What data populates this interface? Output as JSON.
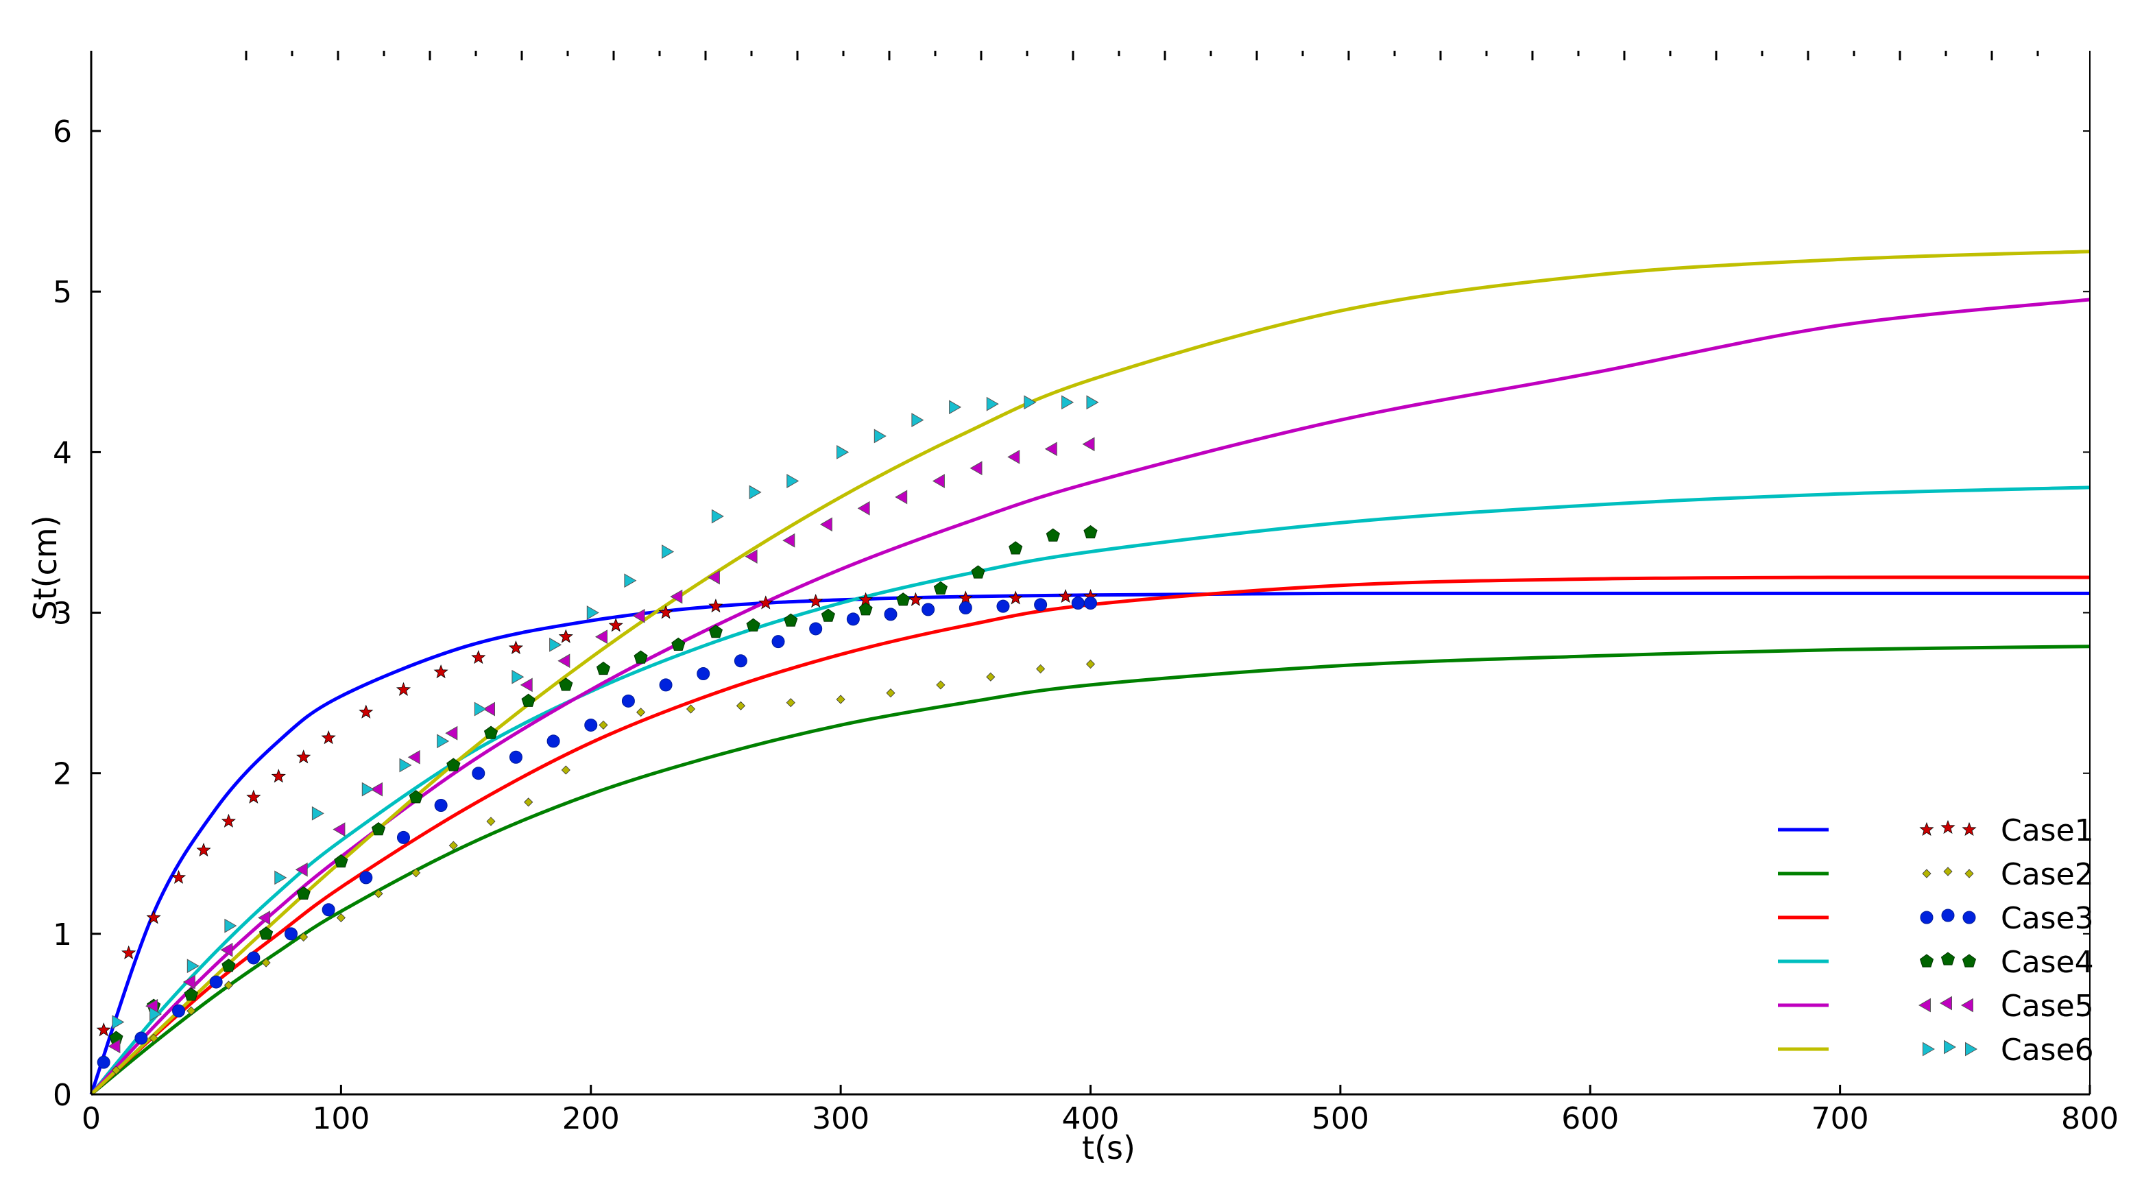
{
  "chart_data": {
    "type": "line",
    "xlabel": "t(s)",
    "ylabel": "St(cm)",
    "xlim": [
      0,
      800
    ],
    "ylim": [
      0,
      6.5
    ],
    "x_ticks": [
      0,
      100,
      200,
      300,
      400,
      500,
      600,
      700,
      800
    ],
    "y_ticks": [
      0,
      1,
      2,
      3,
      4,
      5,
      6
    ],
    "grid": false,
    "legend_position": "bottom-right",
    "model_curve_x": [
      0,
      25,
      50,
      75,
      100,
      150,
      200,
      250,
      300,
      350,
      400,
      500,
      600,
      700,
      800
    ],
    "series": [
      {
        "name": "Case1",
        "color": "#0000ff",
        "marker": "star",
        "marker_color": "#cc0000",
        "model": [
          0,
          1.13,
          1.78,
          2.2,
          2.48,
          2.79,
          2.95,
          3.04,
          3.08,
          3.1,
          3.11,
          3.12,
          3.12,
          3.12,
          3.12
        ],
        "measured": {
          "x": [
            5,
            15,
            25,
            35,
            45,
            55,
            65,
            75,
            85,
            95,
            110,
            125,
            140,
            155,
            170,
            190,
            210,
            230,
            250,
            270,
            290,
            310,
            330,
            350,
            370,
            390,
            400
          ],
          "y": [
            0.4,
            0.88,
            1.1,
            1.35,
            1.52,
            1.7,
            1.85,
            1.98,
            2.1,
            2.22,
            2.38,
            2.52,
            2.63,
            2.72,
            2.78,
            2.85,
            2.92,
            3.0,
            3.04,
            3.06,
            3.07,
            3.08,
            3.08,
            3.09,
            3.09,
            3.1,
            3.1
          ]
        }
      },
      {
        "name": "Case2",
        "color": "#008000",
        "marker": "small-diamond",
        "marker_color": "#b5b500",
        "model": [
          0,
          0.32,
          0.62,
          0.89,
          1.14,
          1.55,
          1.87,
          2.11,
          2.3,
          2.44,
          2.55,
          2.67,
          2.73,
          2.77,
          2.79
        ],
        "measured": {
          "x": [
            10,
            25,
            40,
            55,
            70,
            85,
            100,
            115,
            130,
            145,
            160,
            175,
            190,
            205,
            220,
            240,
            260,
            280,
            300,
            320,
            340,
            360,
            380,
            400
          ],
          "y": [
            0.15,
            0.35,
            0.52,
            0.68,
            0.82,
            0.98,
            1.1,
            1.25,
            1.38,
            1.55,
            1.7,
            1.82,
            2.02,
            2.3,
            2.38,
            2.4,
            2.42,
            2.44,
            2.46,
            2.5,
            2.55,
            2.6,
            2.65,
            2.68
          ]
        }
      },
      {
        "name": "Case3",
        "color": "#ff0000",
        "marker": "circle",
        "marker_color": "#0022dd",
        "model": [
          0,
          0.36,
          0.7,
          1.0,
          1.29,
          1.78,
          2.19,
          2.5,
          2.74,
          2.92,
          3.05,
          3.17,
          3.21,
          3.22,
          3.22
        ],
        "measured": {
          "x": [
            5,
            20,
            35,
            50,
            65,
            80,
            95,
            110,
            125,
            140,
            155,
            170,
            185,
            200,
            215,
            230,
            245,
            260,
            275,
            290,
            305,
            320,
            335,
            350,
            365,
            380,
            395,
            400
          ],
          "y": [
            0.2,
            0.35,
            0.52,
            0.7,
            0.85,
            1.0,
            1.15,
            1.35,
            1.6,
            1.8,
            2.0,
            2.1,
            2.2,
            2.3,
            2.45,
            2.55,
            2.62,
            2.7,
            2.82,
            2.9,
            2.96,
            2.99,
            3.02,
            3.03,
            3.04,
            3.05,
            3.06,
            3.06
          ]
        }
      },
      {
        "name": "Case4",
        "color": "#00bfbf",
        "marker": "pentagon",
        "marker_color": "#006400",
        "model": [
          0,
          0.47,
          0.89,
          1.26,
          1.58,
          2.11,
          2.51,
          2.82,
          3.06,
          3.24,
          3.38,
          3.56,
          3.67,
          3.74,
          3.78
        ],
        "measured": {
          "x": [
            10,
            25,
            40,
            55,
            70,
            85,
            100,
            115,
            130,
            145,
            160,
            175,
            190,
            205,
            220,
            235,
            250,
            265,
            280,
            295,
            310,
            325,
            340,
            355,
            370,
            385,
            400
          ],
          "y": [
            0.35,
            0.55,
            0.62,
            0.8,
            1.0,
            1.25,
            1.45,
            1.65,
            1.85,
            2.05,
            2.25,
            2.45,
            2.55,
            2.65,
            2.72,
            2.8,
            2.88,
            2.92,
            2.95,
            2.98,
            3.02,
            3.08,
            3.15,
            3.25,
            3.4,
            3.48,
            3.5
          ]
        }
      },
      {
        "name": "Case5",
        "color": "#bf00bf",
        "marker": "triangle-left",
        "marker_color": "#bf00bf",
        "model": [
          0,
          0.42,
          0.81,
          1.16,
          1.48,
          2.05,
          2.52,
          2.92,
          3.27,
          3.56,
          3.81,
          4.2,
          4.49,
          4.79,
          4.95
        ],
        "measured": {
          "x": [
            10,
            25,
            40,
            55,
            70,
            85,
            100,
            115,
            130,
            145,
            160,
            175,
            190,
            205,
            220,
            235,
            250,
            265,
            280,
            295,
            310,
            325,
            340,
            355,
            370,
            385,
            400
          ],
          "y": [
            0.3,
            0.55,
            0.7,
            0.9,
            1.1,
            1.4,
            1.65,
            1.9,
            2.1,
            2.25,
            2.4,
            2.55,
            2.7,
            2.85,
            2.98,
            3.1,
            3.22,
            3.35,
            3.45,
            3.55,
            3.65,
            3.72,
            3.82,
            3.9,
            3.97,
            4.02,
            4.05
          ]
        }
      },
      {
        "name": "Case6",
        "color": "#bfbf00",
        "marker": "triangle-right",
        "marker_color": "#17becf",
        "model": [
          0,
          0.37,
          0.74,
          1.1,
          1.45,
          2.12,
          2.72,
          3.25,
          3.72,
          4.12,
          4.45,
          4.88,
          5.1,
          5.2,
          5.25
        ],
        "measured": {
          "x": [
            10,
            25,
            40,
            55,
            75,
            90,
            110,
            125,
            140,
            155,
            170,
            185,
            200,
            215,
            230,
            250,
            265,
            280,
            300,
            315,
            330,
            345,
            360,
            375,
            390,
            400
          ],
          "y": [
            0.45,
            0.5,
            0.8,
            1.05,
            1.35,
            1.75,
            1.9,
            2.05,
            2.2,
            2.4,
            2.6,
            2.8,
            3.0,
            3.2,
            3.38,
            3.6,
            3.75,
            3.82,
            4.0,
            4.1,
            4.2,
            4.28,
            4.3,
            4.31,
            4.31,
            4.31
          ]
        }
      }
    ]
  }
}
